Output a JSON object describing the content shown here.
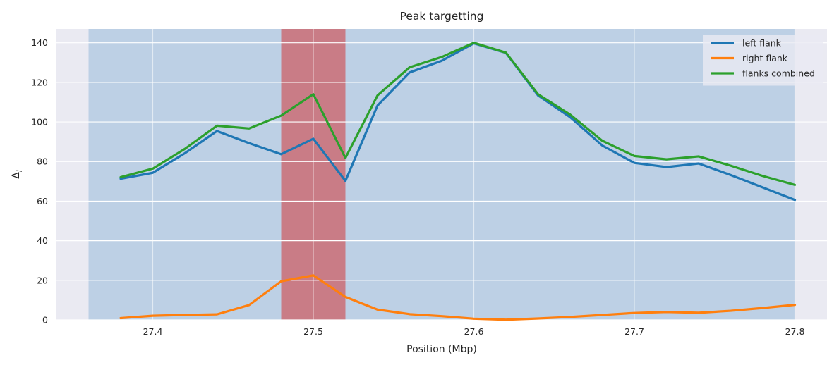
{
  "chart_data": {
    "type": "line",
    "title": "Peak targetting",
    "xlabel": "Position (Mbp)",
    "ylabel": "Δ",
    "ylabel_subscript": "i",
    "xlim": [
      27.34,
      27.82
    ],
    "ylim": [
      0,
      147
    ],
    "xticks": [
      27.4,
      27.5,
      27.6,
      27.7,
      27.8
    ],
    "xtick_labels": [
      "27.4",
      "27.5",
      "27.6",
      "27.7",
      "27.8"
    ],
    "yticks": [
      0,
      20,
      40,
      60,
      80,
      100,
      120,
      140
    ],
    "ytick_labels": [
      "0",
      "20",
      "40",
      "60",
      "80",
      "100",
      "120",
      "140"
    ],
    "grid": true,
    "legend_position": "top-right",
    "shaded_regions": [
      {
        "x_start": 27.36,
        "x_end": 27.8,
        "color": "#1f77b4",
        "opacity": 0.22
      },
      {
        "x_start": 27.48,
        "x_end": 27.52,
        "color": "#d62728",
        "opacity": 0.5
      }
    ],
    "x": [
      27.38,
      27.4,
      27.42,
      27.44,
      27.46,
      27.48,
      27.5,
      27.52,
      27.54,
      27.56,
      27.58,
      27.6,
      27.62,
      27.64,
      27.66,
      27.68,
      27.7,
      27.72,
      27.74,
      27.76,
      27.78,
      27.8
    ],
    "series": [
      {
        "name": "left flank",
        "color": "#1f77b4",
        "values": [
          71.3,
          74.3,
          84.2,
          95.4,
          89.3,
          83.7,
          91.5,
          70.2,
          108.3,
          125.0,
          130.9,
          139.7,
          134.9,
          113.4,
          102.4,
          88.1,
          79.3,
          77.2,
          79.0,
          73.2,
          66.9,
          60.6
        ]
      },
      {
        "name": "right flank",
        "color": "#ff7f0e",
        "values": [
          0.9,
          2.1,
          2.5,
          2.8,
          7.5,
          19.5,
          22.5,
          11.6,
          5.2,
          2.9,
          1.9,
          0.6,
          0.1,
          0.7,
          1.5,
          2.5,
          3.5,
          4.0,
          3.6,
          4.6,
          6.0,
          7.6
        ]
      },
      {
        "name": "flanks combined",
        "color": "#2ca02c",
        "values": [
          72.1,
          76.4,
          86.4,
          98.1,
          96.7,
          103.2,
          114.0,
          81.8,
          113.4,
          127.6,
          132.8,
          140.0,
          135.0,
          114.0,
          103.7,
          90.5,
          82.8,
          81.1,
          82.6,
          77.9,
          72.7,
          68.2
        ]
      }
    ]
  }
}
